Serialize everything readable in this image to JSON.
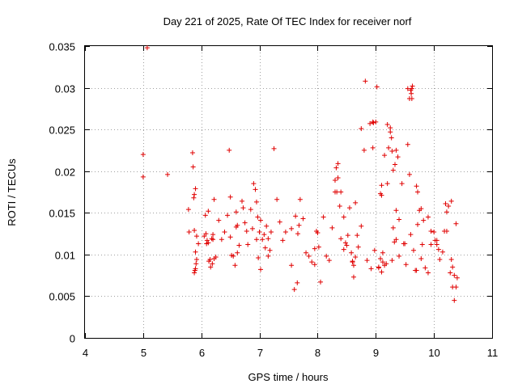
{
  "chart_data": {
    "type": "scatter",
    "title": "Day 221 of 2025, Rate Of TEC Index for receiver norf",
    "xlabel": "GPS time / hours",
    "ylabel": "ROTI / TECUs",
    "xlim": [
      4,
      11
    ],
    "ylim": [
      0,
      0.035
    ],
    "xticks": [
      4,
      5,
      6,
      7,
      8,
      9,
      10,
      11
    ],
    "yticks": [
      0,
      0.005,
      0.01,
      0.015,
      0.02,
      0.025,
      0.03,
      0.035
    ],
    "xtick_labels": [
      "4",
      "5",
      "6",
      "7",
      "8",
      "9",
      "10",
      "11"
    ],
    "ytick_labels": [
      "0",
      "0.005",
      "0.01",
      "0.015",
      "0.02",
      "0.025",
      "0.03",
      "0.035"
    ],
    "grid": true,
    "marker": "+",
    "series": [
      {
        "name": "norf",
        "color": "#e00000",
        "x": [
          5.0,
          5.0,
          5.07,
          5.42,
          5.78,
          5.79,
          5.85,
          5.86,
          5.87,
          5.88,
          5.88,
          5.89,
          5.9,
          5.9,
          5.91,
          5.92,
          5.95,
          6.05,
          6.07,
          6.08,
          6.09,
          6.1,
          6.12,
          6.15,
          6.16,
          6.18,
          6.19,
          6.2,
          6.22,
          6.25,
          6.3,
          6.35,
          6.4,
          6.45,
          6.48,
          6.5,
          6.55,
          6.58,
          6.6,
          6.62,
          6.65,
          6.7,
          6.72,
          6.75,
          6.78,
          6.8,
          6.85,
          6.88,
          6.9,
          6.93,
          6.95,
          6.97,
          7.0,
          7.02,
          7.05,
          7.08,
          7.1,
          7.12,
          7.15,
          7.2,
          7.25,
          7.3,
          7.35,
          7.4,
          7.45,
          7.55,
          7.6,
          7.65,
          7.68,
          7.7,
          7.75,
          7.8,
          7.85,
          7.9,
          7.95,
          8.0,
          8.05,
          8.1,
          8.15,
          8.2,
          8.25,
          8.3,
          8.32,
          8.35,
          8.38,
          8.4,
          8.45,
          8.5,
          8.52,
          8.55,
          8.58,
          8.6,
          8.62,
          8.65,
          8.68,
          8.7,
          8.75,
          8.8,
          8.85,
          8.9,
          8.92,
          8.95,
          8.98,
          9.0,
          9.02,
          9.05,
          9.08,
          9.1,
          9.12,
          9.15,
          9.18,
          9.2,
          9.22,
          9.25,
          9.28,
          9.3,
          9.32,
          9.35,
          9.38,
          9.4,
          9.45,
          9.5,
          9.55,
          9.58,
          9.6,
          9.62,
          9.63,
          9.65,
          9.68,
          9.7,
          9.72,
          9.75,
          9.78,
          9.8,
          9.85,
          9.9,
          9.95,
          10.0,
          10.05,
          10.1,
          10.15,
          10.2,
          10.22,
          10.25,
          10.28,
          10.3,
          10.32,
          10.35,
          10.38,
          10.4,
          9.28,
          9.33,
          9.35,
          9.27,
          9.6,
          9.61,
          9.62,
          9.08,
          9.1,
          8.82,
          8.95,
          8.96,
          8.75,
          9.55,
          9.58,
          9.2,
          9.25,
          8.3,
          8.35,
          8.33,
          7.95,
          7.98,
          8.02,
          7.55,
          7.62,
          7.66,
          9.48,
          9.52,
          10.3,
          10.32,
          10.35,
          10.38,
          9.7,
          9.72,
          10.18,
          10.22,
          8.4,
          8.45,
          8.48,
          8.6,
          8.65,
          8.62,
          6.5,
          6.52,
          6.6,
          6.62,
          6.95,
          6.98,
          7.02,
          7.15,
          7.18,
          6.12,
          6.13,
          6.2,
          6.22,
          5.88,
          5.9,
          5.92,
          9.05,
          9.1,
          9.12,
          9.15,
          9.3,
          9.35,
          9.4,
          9.78,
          9.82,
          9.9,
          9.95,
          10.02,
          10.05,
          10.08
        ],
        "y": [
          0.022,
          0.0193,
          0.0348,
          0.0196,
          0.0154,
          0.0127,
          0.0222,
          0.0205,
          0.0168,
          0.0172,
          0.0078,
          0.0081,
          0.0179,
          0.0083,
          0.0089,
          0.0122,
          0.0113,
          0.0122,
          0.0147,
          0.0125,
          0.0113,
          0.0117,
          0.0152,
          0.0094,
          0.0085,
          0.0119,
          0.0089,
          0.0124,
          0.0166,
          0.0097,
          0.0141,
          0.0118,
          0.0127,
          0.0147,
          0.0225,
          0.0169,
          0.0098,
          0.0087,
          0.0151,
          0.0135,
          0.0111,
          0.0164,
          0.0156,
          0.0138,
          0.0128,
          0.0112,
          0.0154,
          0.0131,
          0.0185,
          0.0178,
          0.0163,
          0.0145,
          0.0127,
          0.0082,
          0.0118,
          0.0124,
          0.0108,
          0.0134,
          0.0098,
          0.0127,
          0.0227,
          0.0166,
          0.0139,
          0.0117,
          0.0127,
          0.0131,
          0.0058,
          0.0066,
          0.0135,
          0.0166,
          0.0143,
          0.0102,
          0.0098,
          0.0091,
          0.0088,
          0.0126,
          0.0067,
          0.0145,
          0.0098,
          0.0093,
          0.0132,
          0.0175,
          0.0204,
          0.0192,
          0.0158,
          0.0175,
          0.0145,
          0.0111,
          0.0123,
          0.0156,
          0.0102,
          0.0092,
          0.0073,
          0.0162,
          0.0123,
          0.0109,
          0.0134,
          0.0225,
          0.0093,
          0.0257,
          0.0083,
          0.0228,
          0.0105,
          0.0259,
          0.0301,
          0.0084,
          0.0095,
          0.0171,
          0.0102,
          0.0219,
          0.0089,
          0.0256,
          0.0228,
          0.0252,
          0.0093,
          0.0201,
          0.0115,
          0.0153,
          0.0217,
          0.0142,
          0.0185,
          0.0113,
          0.0232,
          0.0196,
          0.0124,
          0.0287,
          0.0302,
          0.0105,
          0.0081,
          0.0081,
          0.0136,
          0.0153,
          0.0095,
          0.0112,
          0.0084,
          0.0078,
          0.0112,
          0.0127,
          0.0117,
          0.0094,
          0.0103,
          0.0161,
          0.0128,
          0.0158,
          0.0078,
          0.0164,
          0.0061,
          0.0045,
          0.0137,
          0.0072,
          0.0224,
          0.0208,
          0.0225,
          0.024,
          0.0297,
          0.0293,
          0.0299,
          0.0173,
          0.0183,
          0.0308,
          0.0259,
          0.0258,
          0.0251,
          0.0299,
          0.0287,
          0.0185,
          0.0247,
          0.0189,
          0.0209,
          0.0175,
          0.0107,
          0.0128,
          0.0109,
          0.0087,
          0.0146,
          0.0125,
          0.0113,
          0.0088,
          0.0094,
          0.0085,
          0.0075,
          0.0061,
          0.0182,
          0.0175,
          0.0128,
          0.0151,
          0.0119,
          0.0106,
          0.0114,
          0.0091,
          0.0097,
          0.0087,
          0.0121,
          0.0099,
          0.0133,
          0.0102,
          0.0118,
          0.0096,
          0.0141,
          0.0119,
          0.0105,
          0.0114,
          0.0092,
          0.0118,
          0.0095,
          0.0129,
          0.0103,
          0.0094,
          0.0085,
          0.0079,
          0.0091,
          0.0087,
          0.0132,
          0.0118,
          0.0098,
          0.0155,
          0.0141,
          0.0145,
          0.0128,
          0.0117,
          0.0112,
          0.0106
        ]
      }
    ]
  }
}
